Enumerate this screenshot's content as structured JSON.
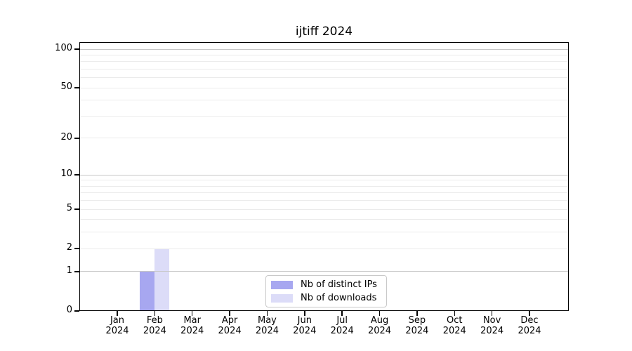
{
  "page": {
    "background": "#ffffff"
  },
  "chart_data": {
    "type": "bar",
    "title": "ijtiff 2024",
    "categories": [
      [
        "Jan",
        "2024"
      ],
      [
        "Feb",
        "2024"
      ],
      [
        "Mar",
        "2024"
      ],
      [
        "Apr",
        "2024"
      ],
      [
        "May",
        "2024"
      ],
      [
        "Jun",
        "2024"
      ],
      [
        "Jul",
        "2024"
      ],
      [
        "Aug",
        "2024"
      ],
      [
        "Sep",
        "2024"
      ],
      [
        "Oct",
        "2024"
      ],
      [
        "Nov",
        "2024"
      ],
      [
        "Dec",
        "2024"
      ]
    ],
    "series": [
      {
        "name": "Nb of distinct IPs",
        "color": "#a7a7f0",
        "values": [
          0,
          1,
          0,
          0,
          0,
          0,
          0,
          0,
          0,
          0,
          0,
          0
        ]
      },
      {
        "name": "Nb of downloads",
        "color": "#dcdcf8",
        "values": [
          0,
          2,
          0,
          0,
          0,
          0,
          0,
          0,
          0,
          0,
          0,
          0
        ]
      }
    ],
    "xlabel": "",
    "ylabel": "",
    "yscale": "log1p",
    "ylim": [
      0,
      114
    ],
    "y_ticks": [
      0,
      1,
      2,
      5,
      10,
      20,
      50,
      100
    ],
    "y_major_gridlines": [
      1,
      10,
      100
    ],
    "y_minor_gridlines": [
      3,
      4,
      6,
      7,
      8,
      9,
      30,
      40,
      60,
      70,
      80,
      90
    ],
    "grid": true,
    "legend_position": "bottom-center",
    "colors": {
      "grid_major": "#c7c7c7",
      "grid_minor": "#ebebeb",
      "spine": "#000000",
      "text": "#000000",
      "background": "#ffffff"
    }
  }
}
